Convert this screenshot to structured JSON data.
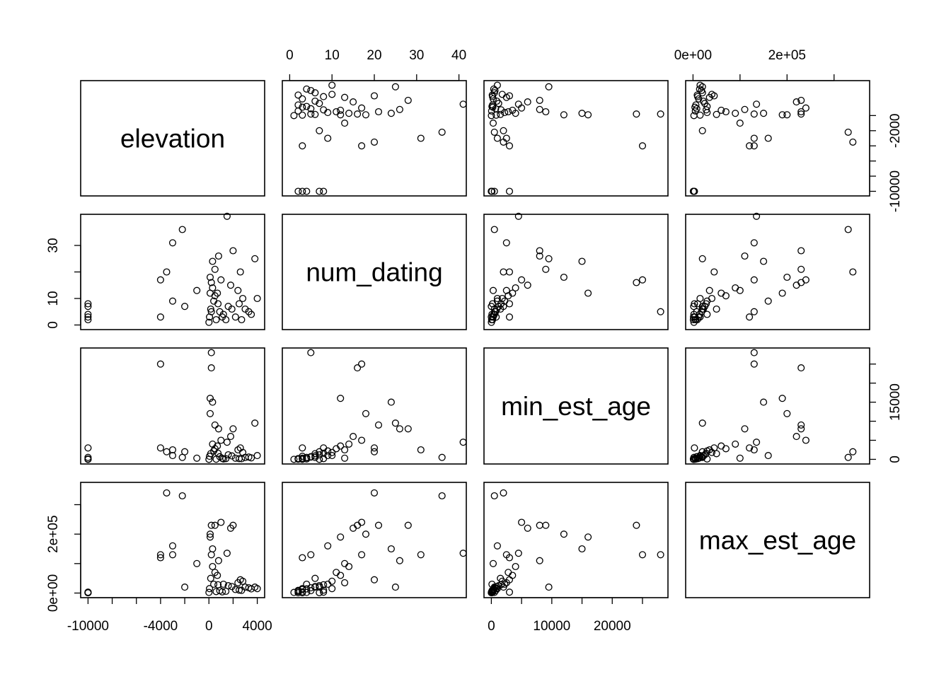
{
  "chart_data": {
    "type": "scatter",
    "variables": [
      "elevation",
      "num_dating",
      "min_est_age",
      "max_est_age"
    ],
    "axes": {
      "elevation": {
        "range": [
          -10000,
          4000
        ],
        "ticks": [
          -10000,
          -8000,
          -6000,
          -4000,
          -2000,
          0,
          2000,
          4000
        ],
        "labels": [
          "-10000",
          "",
          "",
          "-4000",
          "",
          "0",
          "",
          "4000"
        ],
        "right_ticks": [
          -10000,
          -8000,
          -6000,
          -4000,
          -2000,
          0
        ],
        "right_labels": [
          "-10000",
          "",
          "",
          "",
          "-2000",
          ""
        ]
      },
      "num_dating": {
        "range": [
          0,
          40
        ],
        "ticks": [
          0,
          10,
          20,
          30,
          40
        ],
        "top_labels": [
          "0",
          "10",
          "20",
          "30",
          "40"
        ],
        "left_ticks": [
          0,
          10,
          20,
          30
        ],
        "left_labels": [
          "0",
          "10",
          "",
          "30"
        ]
      },
      "min_est_age": {
        "range": [
          0,
          28000
        ],
        "ticks": [
          0,
          5000,
          10000,
          15000,
          20000,
          25000
        ],
        "bottom_labels": [
          "0",
          "",
          "10000",
          "",
          "20000",
          ""
        ],
        "right_labels": [
          "0",
          "",
          "",
          "15000",
          "",
          ""
        ]
      },
      "max_est_age": {
        "range": [
          0,
          360000
        ],
        "ticks": [
          0,
          100000,
          200000,
          300000
        ],
        "top_labels": [
          "0e+00",
          "",
          "2e+05",
          ""
        ],
        "left_labels": [
          "0e+00",
          "",
          "2e+05",
          ""
        ]
      }
    },
    "points": [
      {
        "elevation": -10000,
        "num_dating": 3,
        "min_est_age": 0,
        "max_est_age": 1000
      },
      {
        "elevation": -10000,
        "num_dating": 4,
        "min_est_age": 500,
        "max_est_age": 2000
      },
      {
        "elevation": -10000,
        "num_dating": 7,
        "min_est_age": 0,
        "max_est_age": 1500
      },
      {
        "elevation": -10000,
        "num_dating": 8,
        "min_est_age": 3000,
        "max_est_age": 3000
      },
      {
        "elevation": -10000,
        "num_dating": 2,
        "min_est_age": 100,
        "max_est_age": 800
      },
      {
        "elevation": -4000,
        "num_dating": 17,
        "min_est_age": 25000,
        "max_est_age": 130000
      },
      {
        "elevation": -4000,
        "num_dating": 3,
        "min_est_age": 3000,
        "max_est_age": 120000
      },
      {
        "elevation": -3500,
        "num_dating": 20,
        "min_est_age": 2000,
        "max_est_age": 340000
      },
      {
        "elevation": -3000,
        "num_dating": 31,
        "min_est_age": 2500,
        "max_est_age": 130000
      },
      {
        "elevation": -3000,
        "num_dating": 9,
        "min_est_age": 1000,
        "max_est_age": 160000
      },
      {
        "elevation": -2200,
        "num_dating": 36,
        "min_est_age": 500,
        "max_est_age": 330000
      },
      {
        "elevation": -2000,
        "num_dating": 7,
        "min_est_age": 2000,
        "max_est_age": 20000
      },
      {
        "elevation": -1000,
        "num_dating": 13,
        "min_est_age": 300,
        "max_est_age": 100000
      },
      {
        "elevation": 200,
        "num_dating": 5,
        "min_est_age": 28000,
        "max_est_age": 130000
      },
      {
        "elevation": 200,
        "num_dating": 16,
        "min_est_age": 24000,
        "max_est_age": 230000
      },
      {
        "elevation": 100,
        "num_dating": 12,
        "min_est_age": 16000,
        "max_est_age": 190000
      },
      {
        "elevation": 300,
        "num_dating": 24,
        "min_est_age": 15000,
        "max_est_age": 150000
      },
      {
        "elevation": 500,
        "num_dating": 21,
        "min_est_age": 9000,
        "max_est_age": 230000
      },
      {
        "elevation": 800,
        "num_dating": 26,
        "min_est_age": 8000,
        "max_est_age": 110000
      },
      {
        "elevation": 1000,
        "num_dating": 17,
        "min_est_age": 5000,
        "max_est_age": 240000
      },
      {
        "elevation": 1500,
        "num_dating": 41,
        "min_est_age": 4500,
        "max_est_age": 135000
      },
      {
        "elevation": 2000,
        "num_dating": 28,
        "min_est_age": 8000,
        "max_est_age": 230000
      },
      {
        "elevation": 1800,
        "num_dating": 15,
        "min_est_age": 6000,
        "max_est_age": 220000
      },
      {
        "elevation": 2600,
        "num_dating": 20,
        "min_est_age": 3000,
        "max_est_age": 45000
      },
      {
        "elevation": 3800,
        "num_dating": 25,
        "min_est_age": 9500,
        "max_est_age": 20000
      },
      {
        "elevation": 4000,
        "num_dating": 10,
        "min_est_age": 1000,
        "max_est_age": 15000
      },
      {
        "elevation": 3000,
        "num_dating": 6,
        "min_est_age": 500,
        "max_est_age": 20000
      },
      {
        "elevation": 2500,
        "num_dating": 8,
        "min_est_age": 200,
        "max_est_age": 10000
      },
      {
        "elevation": 1200,
        "num_dating": 4,
        "min_est_age": 100,
        "max_est_age": 30000
      },
      {
        "elevation": 600,
        "num_dating": 2,
        "min_est_age": 50,
        "max_est_age": 5000
      },
      {
        "elevation": 0,
        "num_dating": 1,
        "min_est_age": 10,
        "max_est_age": 2000
      },
      {
        "elevation": 50,
        "num_dating": 3,
        "min_est_age": 800,
        "max_est_age": 15000
      },
      {
        "elevation": 150,
        "num_dating": 6,
        "min_est_age": 1500,
        "max_est_age": 50000
      },
      {
        "elevation": 400,
        "num_dating": 9,
        "min_est_age": 2200,
        "max_est_age": 30000
      },
      {
        "elevation": 700,
        "num_dating": 12,
        "min_est_age": 3500,
        "max_est_age": 60000
      },
      {
        "elevation": 900,
        "num_dating": 5,
        "min_est_age": 700,
        "max_est_age": 8000
      },
      {
        "elevation": 1600,
        "num_dating": 7,
        "min_est_age": 1200,
        "max_est_age": 25000
      },
      {
        "elevation": 2200,
        "num_dating": 3,
        "min_est_age": 300,
        "max_est_age": 12000
      },
      {
        "elevation": 3300,
        "num_dating": 5,
        "min_est_age": 600,
        "max_est_age": 18000
      },
      {
        "elevation": 2800,
        "num_dating": 10,
        "min_est_age": 1800,
        "max_est_age": 40000
      },
      {
        "elevation": 1400,
        "num_dating": 2,
        "min_est_age": 200,
        "max_est_age": 6000
      },
      {
        "elevation": 300,
        "num_dating": 14,
        "min_est_age": 4000,
        "max_est_age": 90000
      },
      {
        "elevation": 100,
        "num_dating": 18,
        "min_est_age": 12000,
        "max_est_age": 200000
      },
      {
        "elevation": 500,
        "num_dating": 11,
        "min_est_age": 2800,
        "max_est_age": 70000
      },
      {
        "elevation": 1900,
        "num_dating": 6,
        "min_est_age": 900,
        "max_est_age": 22000
      },
      {
        "elevation": 3500,
        "num_dating": 4,
        "min_est_age": 400,
        "max_est_age": 14000
      },
      {
        "elevation": 2400,
        "num_dating": 13,
        "min_est_age": 2500,
        "max_est_age": 35000
      },
      {
        "elevation": 750,
        "num_dating": 8,
        "min_est_age": 1600,
        "max_est_age": 28000
      },
      {
        "elevation": 1100,
        "num_dating": 3,
        "min_est_age": 250,
        "max_est_age": 4000
      },
      {
        "elevation": 2700,
        "num_dating": 2,
        "min_est_age": 150,
        "max_est_age": 9000
      }
    ]
  }
}
